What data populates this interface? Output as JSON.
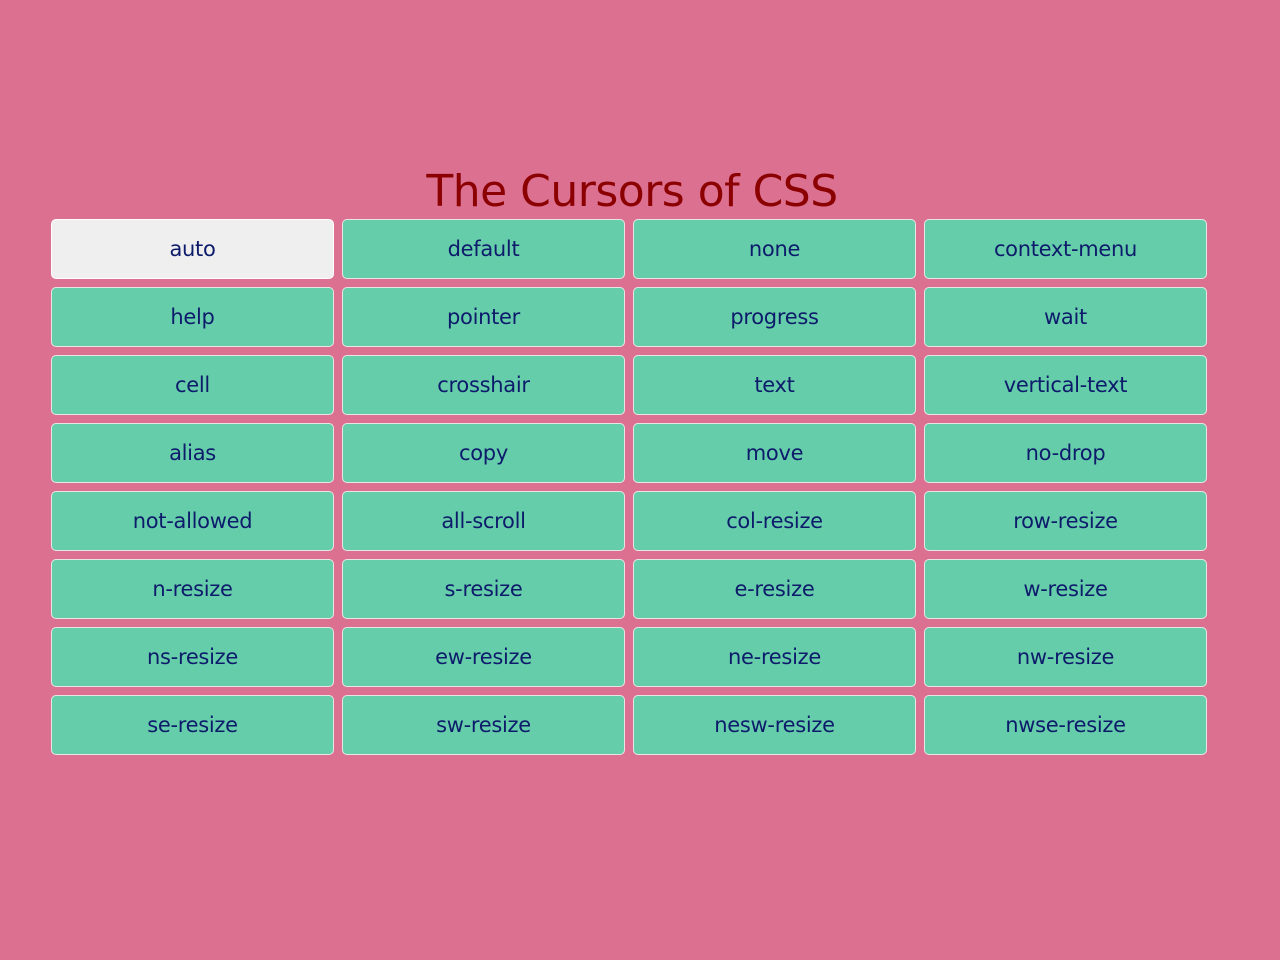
{
  "title": "The Cursors of CSS",
  "colors": {
    "background": "#dc7090",
    "title": "#8b0000",
    "tile": "#66cdaa",
    "tile_active": "#efeff0",
    "tile_text": "#0d1b6b"
  },
  "active_index": 0,
  "cursors": [
    "auto",
    "default",
    "none",
    "context-menu",
    "help",
    "pointer",
    "progress",
    "wait",
    "cell",
    "crosshair",
    "text",
    "vertical-text",
    "alias",
    "copy",
    "move",
    "no-drop",
    "not-allowed",
    "all-scroll",
    "col-resize",
    "row-resize",
    "n-resize",
    "s-resize",
    "e-resize",
    "w-resize",
    "ns-resize",
    "ew-resize",
    "ne-resize",
    "nw-resize",
    "se-resize",
    "sw-resize",
    "nesw-resize",
    "nwse-resize"
  ]
}
